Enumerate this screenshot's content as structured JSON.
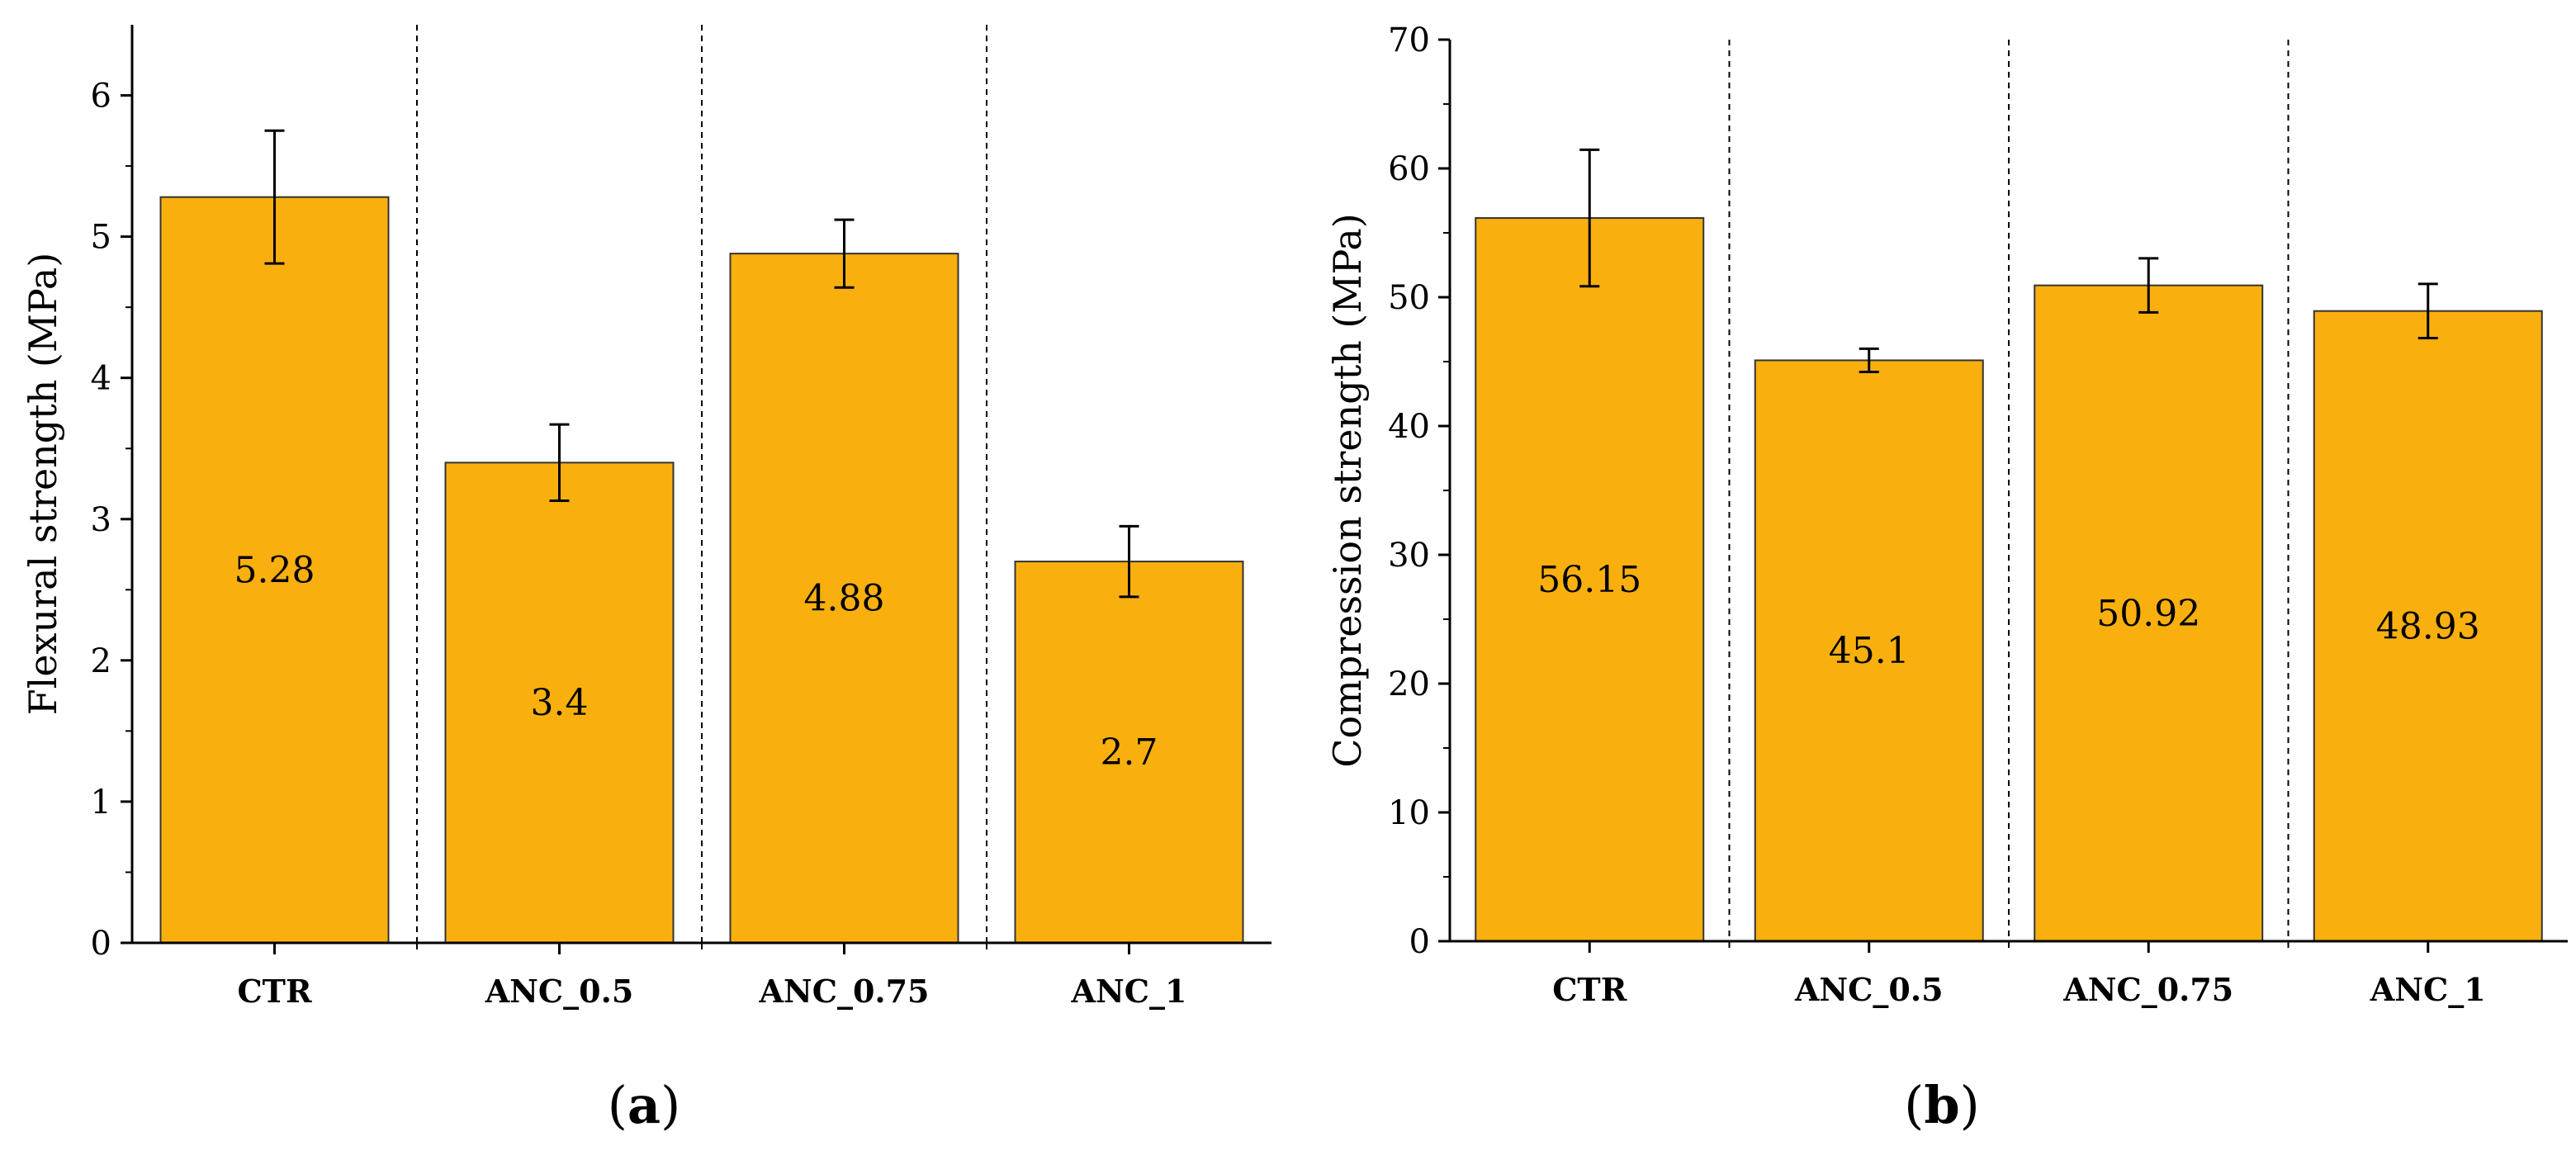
{
  "colors": {
    "bar": "#F9B00F",
    "bar_edge": "#333333",
    "axis": "#000000",
    "divider": "#000000"
  },
  "chart_data": [
    {
      "type": "bar",
      "panel_label": "(a)",
      "panel_letter": "a",
      "categories": [
        "CTR",
        "ANC_0.5",
        "ANC_0.75",
        "ANC_1"
      ],
      "values": [
        5.28,
        3.4,
        4.88,
        2.7
      ],
      "value_labels": [
        "5.28",
        "3.4",
        "4.88",
        "2.7"
      ],
      "errors": [
        0.47,
        0.27,
        0.24,
        0.25
      ],
      "xlabel": "",
      "ylabel": "Flexural strength (MPa)",
      "ylim": [
        0,
        6.5
      ],
      "yticks": [
        0,
        1,
        2,
        3,
        4,
        5,
        6
      ],
      "ytick_labels": [
        "0",
        "1",
        "2",
        "3",
        "4",
        "5",
        "6"
      ],
      "minor_step": 0.5,
      "grid": false,
      "legend": "none"
    },
    {
      "type": "bar",
      "panel_label": "(b)",
      "panel_letter": "b",
      "categories": [
        "CTR",
        "ANC_0.5",
        "ANC_0.75",
        "ANC_1"
      ],
      "values": [
        56.15,
        45.1,
        50.92,
        48.93
      ],
      "value_labels": [
        "56.15",
        "45.1",
        "50.92",
        "48.93"
      ],
      "errors": [
        5.3,
        0.9,
        2.1,
        2.1
      ],
      "xlabel": "",
      "ylabel": "Compression strength (MPa)",
      "ylim": [
        0,
        70
      ],
      "yticks": [
        0,
        10,
        20,
        30,
        40,
        50,
        60,
        70
      ],
      "ytick_labels": [
        "0",
        "10",
        "20",
        "30",
        "40",
        "50",
        "60",
        "70"
      ],
      "minor_step": 5,
      "grid": false,
      "legend": "none"
    }
  ]
}
